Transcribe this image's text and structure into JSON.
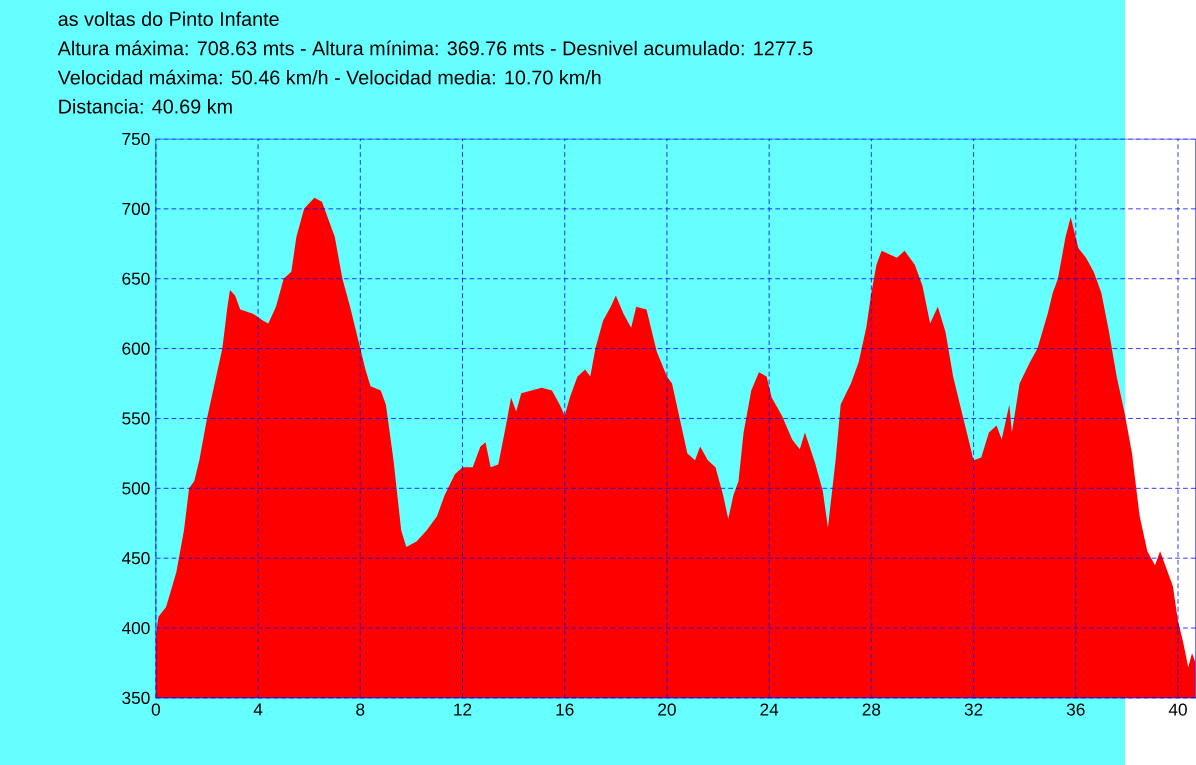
{
  "chart_data": {
    "type": "area",
    "title": "as voltas do Pinto Infante",
    "annotations": [
      "Altura máxima: 708.63 mts - Altura mínima: 369.76 mts - Desnivel acumulado: 1277.5",
      "Velocidad máxima: 50.46 km/h - Velocidad media: 10.70 km/h",
      "Distancia: 40.69 km"
    ],
    "xlim": [
      0,
      40.69
    ],
    "ylim": [
      350,
      750
    ],
    "xticks": [
      0,
      4,
      8,
      12,
      16,
      20,
      24,
      28,
      32,
      36,
      40
    ],
    "yticks": [
      350,
      400,
      450,
      500,
      550,
      600,
      650,
      700,
      750
    ],
    "grid": true,
    "series": [
      {
        "color": "#ff0000",
        "x": [
          0,
          0.1,
          0.4,
          0.8,
          1.1,
          1.3,
          1.5,
          1.7,
          2.0,
          2.3,
          2.6,
          2.8,
          2.9,
          3.1,
          3.3,
          3.8,
          4.2,
          4.4,
          4.7,
          5.0,
          5.3,
          5.5,
          5.8,
          6.2,
          6.5,
          6.8,
          7.0,
          7.3,
          7.6,
          8.0,
          8.2,
          8.4,
          8.8,
          9.0,
          9.3,
          9.6,
          9.8,
          10.2,
          10.6,
          11.0,
          11.3,
          11.7,
          12.0,
          12.4,
          12.7,
          12.9,
          13.1,
          13.4,
          13.7,
          13.9,
          14.1,
          14.3,
          14.7,
          15.1,
          15.5,
          15.8,
          16.0,
          16.2,
          16.5,
          16.8,
          17.0,
          17.2,
          17.5,
          17.8,
          18.0,
          18.3,
          18.6,
          18.8,
          19.2,
          19.6,
          20.0,
          20.2,
          20.5,
          20.8,
          21.1,
          21.3,
          21.6,
          21.9,
          22.2,
          22.4,
          22.6,
          22.8,
          23.0,
          23.3,
          23.6,
          23.9,
          24.1,
          24.5,
          24.9,
          25.2,
          25.4,
          25.8,
          26.1,
          26.3,
          26.6,
          26.8,
          27.2,
          27.5,
          27.8,
          28.0,
          28.2,
          28.4,
          29.0,
          29.3,
          29.7,
          30.0,
          30.3,
          30.6,
          30.9,
          31.2,
          31.6,
          32.0,
          32.3,
          32.6,
          32.9,
          33.1,
          33.4,
          33.5,
          33.8,
          34.2,
          34.5,
          34.9,
          35.1,
          35.3,
          35.6,
          35.8,
          36.1,
          36.4,
          36.7,
          37.0,
          37.3,
          37.6,
          37.9,
          38.2,
          38.5,
          38.8,
          39.1,
          39.3,
          39.6,
          39.8,
          40.0,
          40.2,
          40.4,
          40.55,
          40.69
        ],
        "values": [
          395,
          408,
          415,
          440,
          470,
          500,
          505,
          520,
          550,
          575,
          600,
          630,
          642,
          638,
          628,
          625,
          620,
          618,
          630,
          650,
          655,
          680,
          700,
          708,
          705,
          690,
          680,
          650,
          630,
          600,
          585,
          573,
          570,
          560,
          520,
          470,
          458,
          462,
          470,
          480,
          495,
          510,
          515,
          515,
          530,
          533,
          515,
          517,
          545,
          565,
          555,
          568,
          570,
          572,
          570,
          560,
          552,
          565,
          580,
          585,
          580,
          600,
          620,
          630,
          638,
          625,
          615,
          630,
          628,
          598,
          580,
          575,
          550,
          525,
          520,
          530,
          520,
          515,
          495,
          478,
          495,
          505,
          540,
          570,
          583,
          580,
          565,
          552,
          535,
          528,
          540,
          518,
          498,
          472,
          520,
          560,
          575,
          590,
          615,
          640,
          660,
          670,
          665,
          670,
          660,
          645,
          618,
          630,
          612,
          580,
          550,
          520,
          522,
          540,
          545,
          535,
          560,
          540,
          575,
          590,
          600,
          625,
          640,
          650,
          680,
          694,
          672,
          665,
          655,
          640,
          612,
          580,
          555,
          525,
          480,
          455,
          445,
          455,
          440,
          430,
          405,
          390,
          372,
          382,
          375
        ]
      }
    ]
  }
}
